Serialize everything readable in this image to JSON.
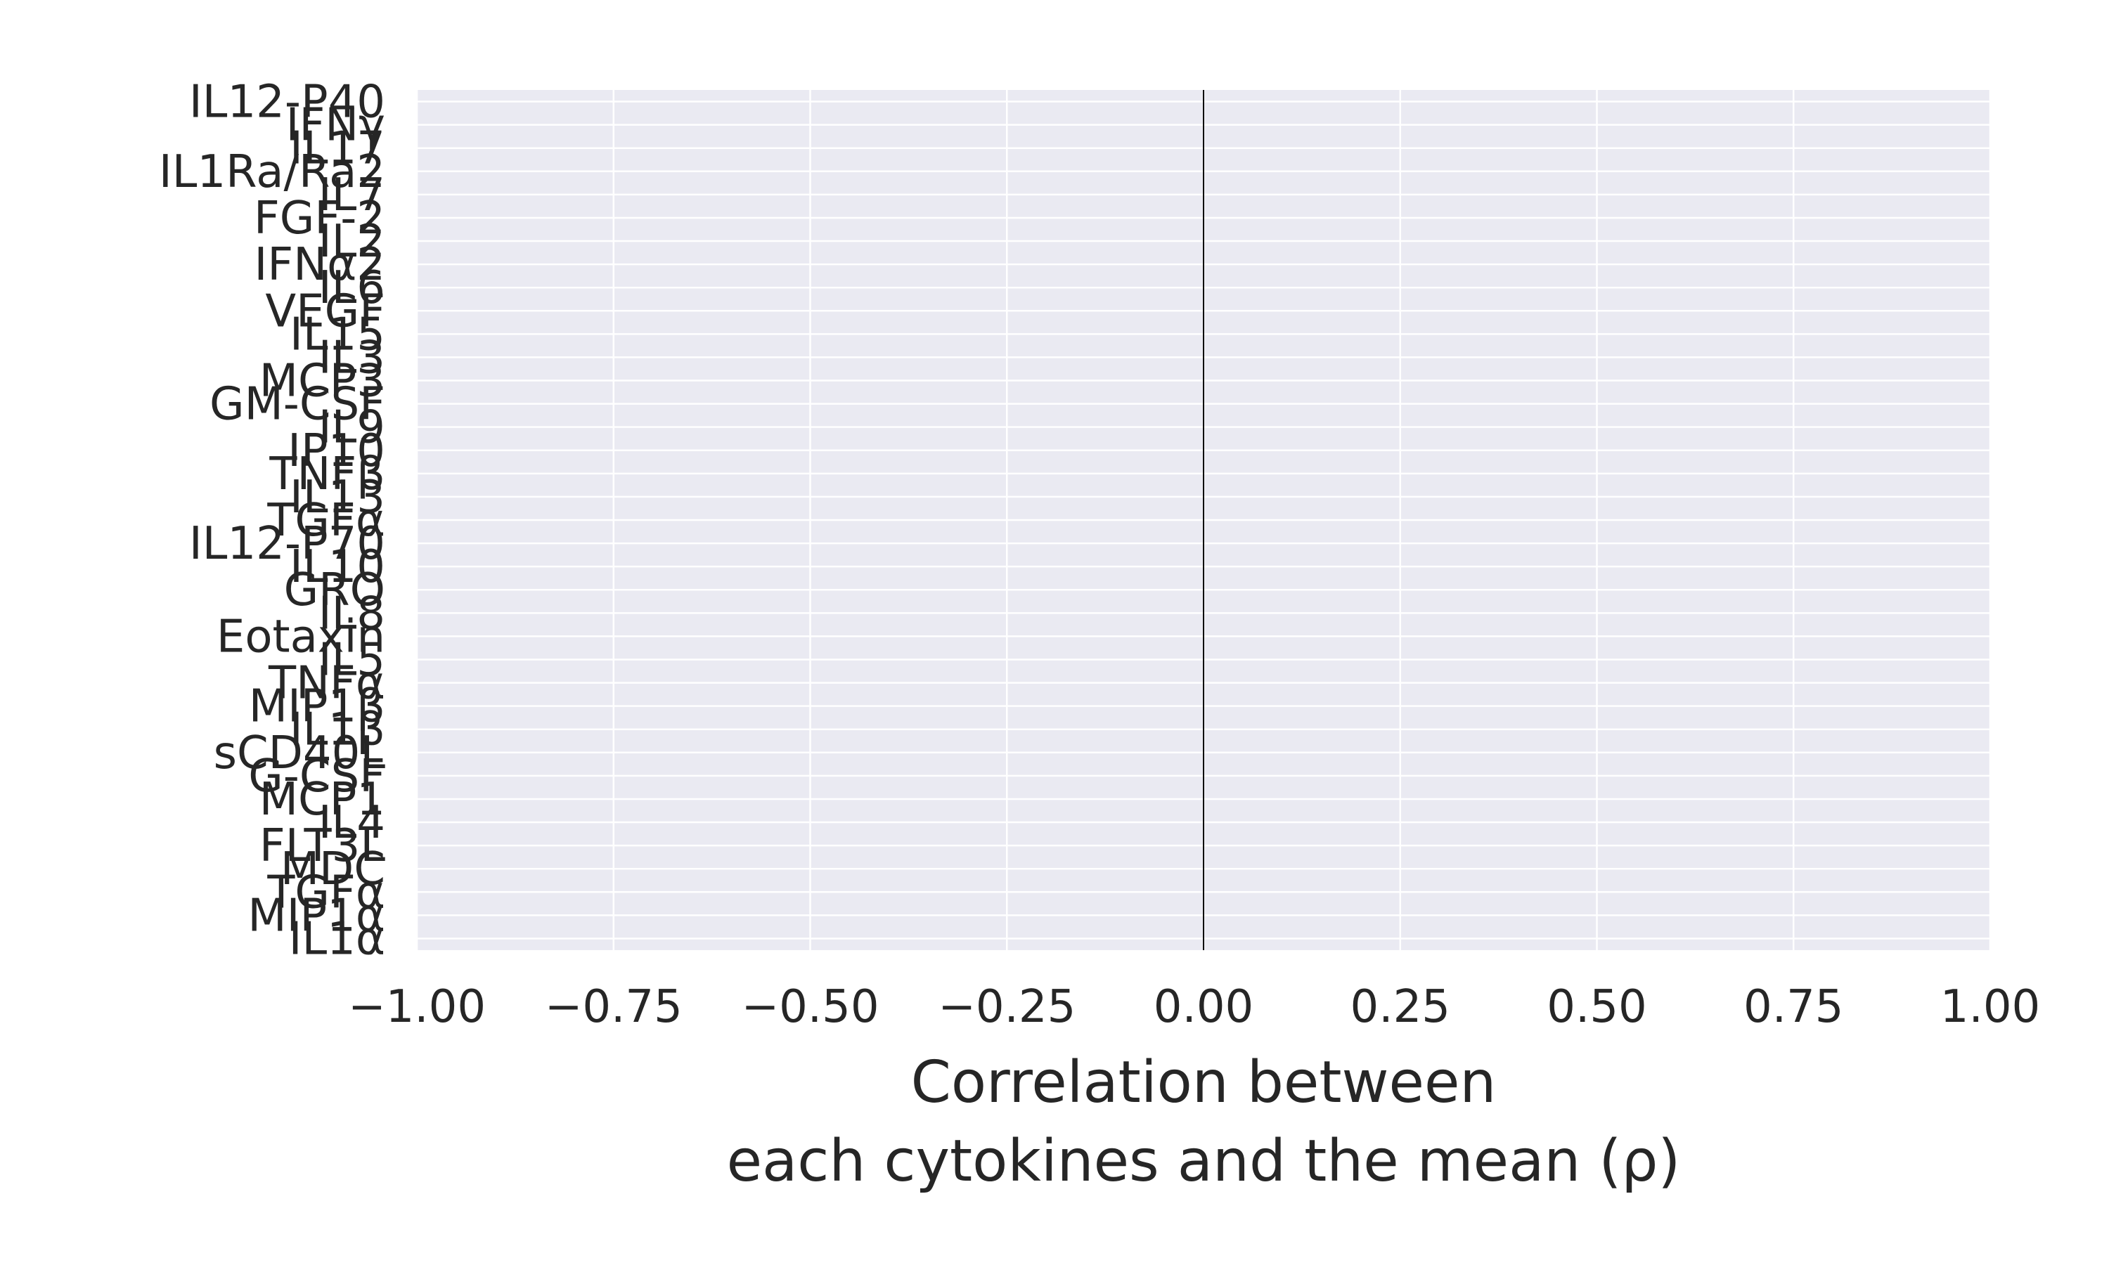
{
  "chart_data": {
    "type": "bar",
    "orientation": "horizontal",
    "categories": [
      "IL12-P40",
      "IFNγ",
      "IL17",
      "IL1Ra/Ra2",
      "IL7",
      "FGF-2",
      "IL2",
      "IFNα2",
      "IL6",
      "VEGF",
      "IL15",
      "IL3",
      "MCP3",
      "GM-CSF",
      "IL9",
      "IP10",
      "TNFβ",
      "IL13",
      "TGFα",
      "IL12-P70",
      "IL10",
      "GRO",
      "IL8",
      "Eotaxin",
      "IL5",
      "TNFα",
      "MIP1β",
      "IL1β",
      "sCD40L",
      "G-CSF",
      "MCP1",
      "IL4",
      "FLT3L",
      "MDC",
      "TGFα",
      "MIP1α",
      "IL1α"
    ],
    "values": [
      0,
      0,
      0,
      0,
      0,
      0,
      0,
      0,
      0,
      0,
      0,
      0,
      0,
      0,
      0,
      0,
      0,
      0,
      0,
      0,
      0,
      0,
      0,
      0,
      0,
      0,
      0,
      0,
      0,
      0,
      0,
      0,
      0,
      0,
      0,
      0,
      0
    ],
    "xlim": [
      -1.0,
      1.0
    ],
    "xticks": [
      "−1.00",
      "−0.75",
      "−0.50",
      "−0.25",
      "0.00",
      "0.25",
      "0.50",
      "0.75",
      "1.00"
    ],
    "xlabel_line1": "Correlation between",
    "xlabel_line2": "each cytokines and the mean (ρ)",
    "grid": true,
    "reference_line_x": 0,
    "colors": {
      "plot_bg": "#EAEAF2",
      "grid": "#FFFFFF",
      "reference_line": "#000000",
      "text": "#262626"
    }
  }
}
